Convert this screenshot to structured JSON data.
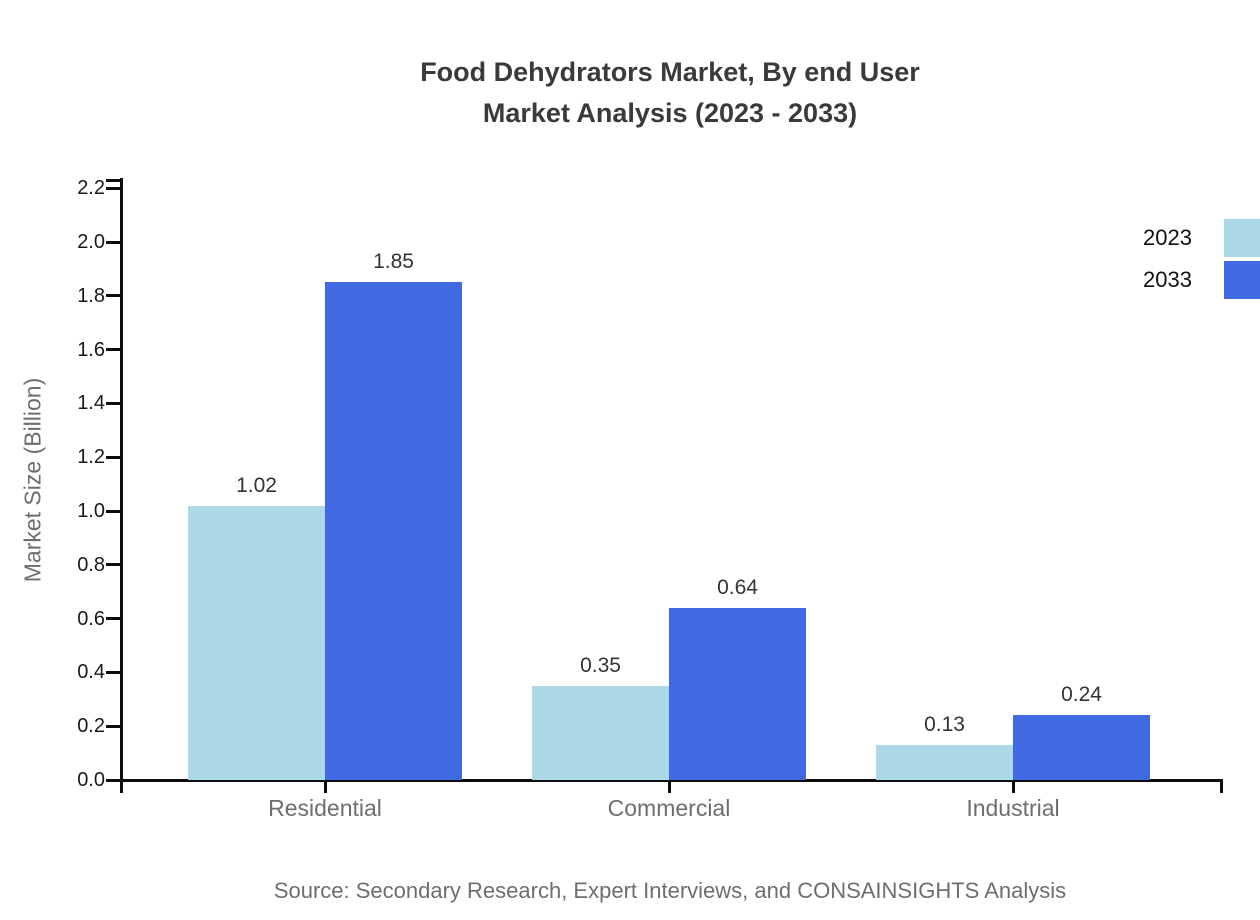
{
  "title": {
    "line1": "Food Dehydrators Market, By end User",
    "line2": "Market Analysis (2023 - 2033)"
  },
  "source_note": "Source: Secondary Research, Expert Interviews, and CONSAINSIGHTS Analysis",
  "chart_data": {
    "type": "bar",
    "title": "Food Dehydrators Market, By end User Market Analysis (2023 - 2033)",
    "categories": [
      "Residential",
      "Commercial",
      "Industrial"
    ],
    "series": [
      {
        "name": "2023",
        "color": "#ADD8E6",
        "values": [
          1.02,
          0.35,
          0.13
        ]
      },
      {
        "name": "2033",
        "color": "#4169E1",
        "values": [
          1.85,
          0.64,
          0.24
        ]
      }
    ],
    "xlabel": "",
    "ylabel": "Market Size (Billion)",
    "ylim": [
      0.0,
      2.2
    ],
    "yticks": [
      "0.0",
      "0.2",
      "0.4",
      "0.6",
      "0.8",
      "1.0",
      "1.2",
      "1.4",
      "1.6",
      "1.8",
      "2.0",
      "2.2"
    ],
    "grid": false,
    "legend_position": "top-right",
    "value_labels": [
      "1.02",
      "1.85",
      "0.35",
      "0.64",
      "0.13",
      "0.24"
    ],
    "colors": {
      "title_text": "#3a3a3a",
      "axis_line": "#0d0d0d",
      "tick_label": "#1a1a1a",
      "category_label": "#6e6e6e",
      "value_label": "#333333",
      "source_text": "#6e6e6e",
      "background": "#ffffff"
    }
  }
}
